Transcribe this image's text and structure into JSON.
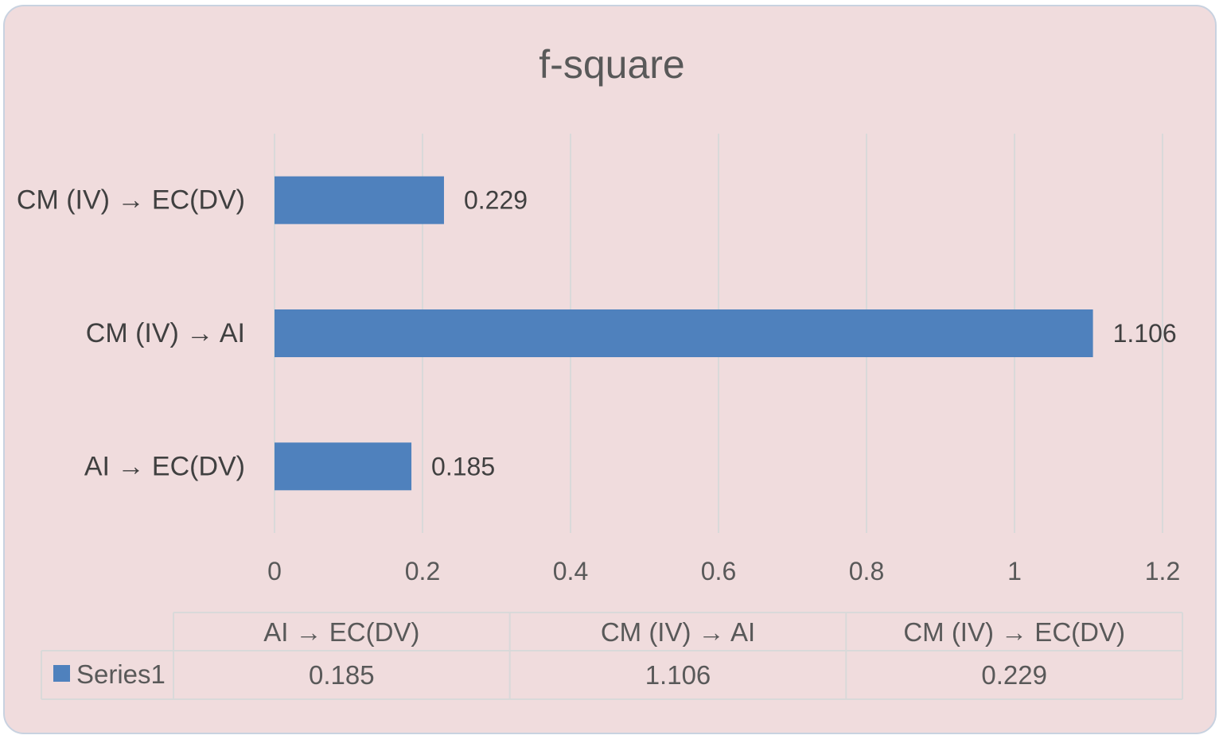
{
  "chart_data": {
    "type": "bar",
    "orientation": "horizontal",
    "title": "f-square",
    "categories": [
      "AI → EC(DV)",
      "CM (IV) → AI",
      "CM (IV) → EC(DV)"
    ],
    "series": [
      {
        "name": "Series1",
        "values": [
          0.185,
          1.106,
          0.229
        ],
        "color": "#4f81bd"
      }
    ],
    "data_labels": [
      "0.185",
      "1.106",
      "0.229"
    ],
    "xlim": [
      0,
      1.2
    ],
    "x_ticks": [
      0,
      0.2,
      0.4,
      0.6,
      0.8,
      1,
      1.2
    ],
    "x_tick_labels": [
      "0",
      "0.2",
      "0.4",
      "0.6",
      "0.8",
      "1",
      "1.2"
    ],
    "grid": true,
    "data_table": true,
    "table_values": [
      "0.185",
      "1.106",
      "0.229"
    ]
  },
  "colors": {
    "background": "#f0dcdd",
    "bar": "#4f81bd",
    "grid": "#d9d9d9"
  }
}
